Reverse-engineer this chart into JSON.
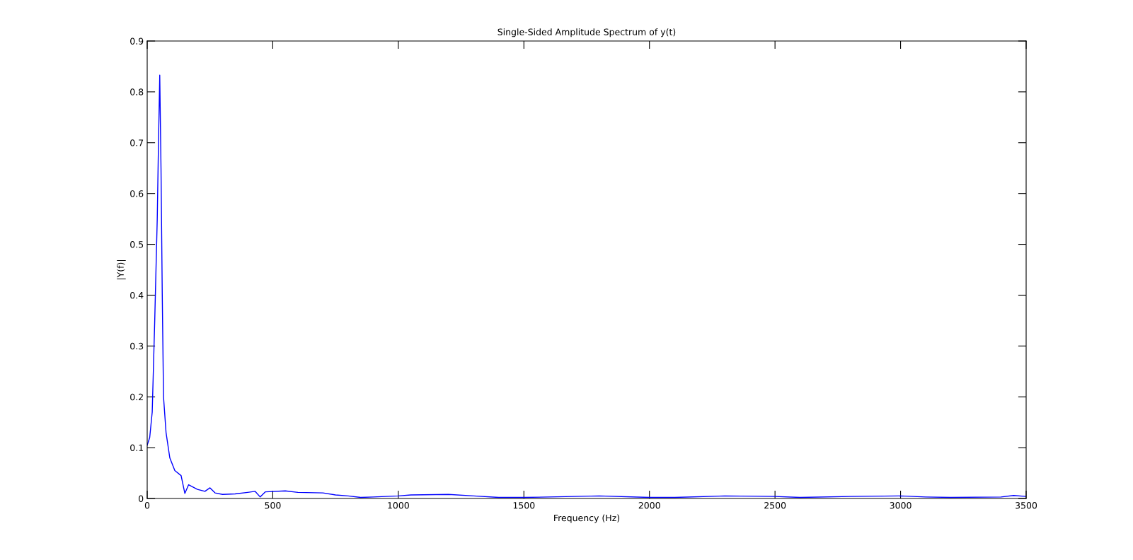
{
  "chart_data": {
    "type": "line",
    "title": "Single-Sided Amplitude Spectrum of y(t)",
    "xlabel": "Frequency (Hz)",
    "ylabel": "|Y(f)|",
    "series": [
      {
        "color": "#0000ff",
        "x": [
          0,
          10,
          20,
          30,
          40,
          45,
          50,
          55,
          60,
          65,
          75,
          90,
          110,
          135,
          150,
          165,
          200,
          230,
          250,
          270,
          300,
          350,
          400,
          430,
          450,
          470,
          550,
          600,
          700,
          750,
          800,
          850,
          900,
          1000,
          1050,
          1200,
          1300,
          1400,
          1500,
          1700,
          1800,
          2000,
          2100,
          2300,
          2500,
          2600,
          2800,
          3000,
          3100,
          3200,
          3400,
          3450,
          3500
        ],
        "values": [
          0.105,
          0.12,
          0.17,
          0.35,
          0.55,
          0.7,
          0.833,
          0.65,
          0.4,
          0.2,
          0.13,
          0.08,
          0.055,
          0.045,
          0.01,
          0.027,
          0.018,
          0.014,
          0.021,
          0.011,
          0.008,
          0.009,
          0.012,
          0.014,
          0.003,
          0.013,
          0.015,
          0.012,
          0.011,
          0.007,
          0.005,
          0.002,
          0.003,
          0.005,
          0.007,
          0.008,
          0.005,
          0.002,
          0.002,
          0.004,
          0.005,
          0.002,
          0.002,
          0.005,
          0.004,
          0.002,
          0.004,
          0.005,
          0.003,
          0.002,
          0.003,
          0.006,
          0.004
        ]
      }
    ],
    "xlim": [
      0,
      3500
    ],
    "xticks": [
      0,
      500,
      1000,
      1500,
      2000,
      2500,
      3000,
      3500
    ],
    "ylim": [
      0,
      0.9
    ],
    "yticks": [
      0,
      0.1,
      0.2,
      0.3,
      0.4,
      0.5,
      0.6,
      0.7,
      0.8,
      0.9
    ],
    "grid": false,
    "legend": false
  }
}
